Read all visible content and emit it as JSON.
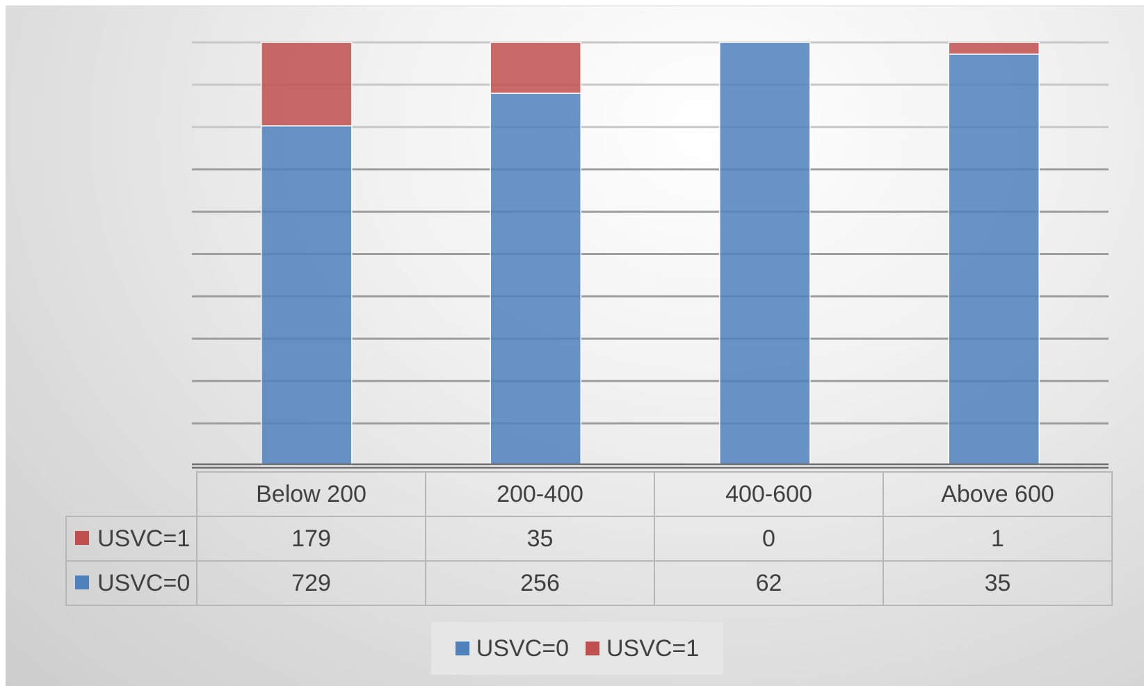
{
  "chart_data": {
    "type": "bar",
    "stacked": "100%",
    "categories": [
      "Below 200",
      "200-400",
      "400-600",
      "Above 600"
    ],
    "series": [
      {
        "name": "USVC=0",
        "values": [
          729,
          256,
          62,
          35
        ],
        "color": "#4f81bd"
      },
      {
        "name": "USVC=1",
        "values": [
          179,
          35,
          0,
          1
        ],
        "color": "#c0504d"
      }
    ],
    "title": "",
    "xlabel": "",
    "ylabel": "",
    "ylim": [
      0,
      1
    ],
    "gridlines": 10,
    "grid": true,
    "legend": "bottom",
    "data_table": true
  }
}
